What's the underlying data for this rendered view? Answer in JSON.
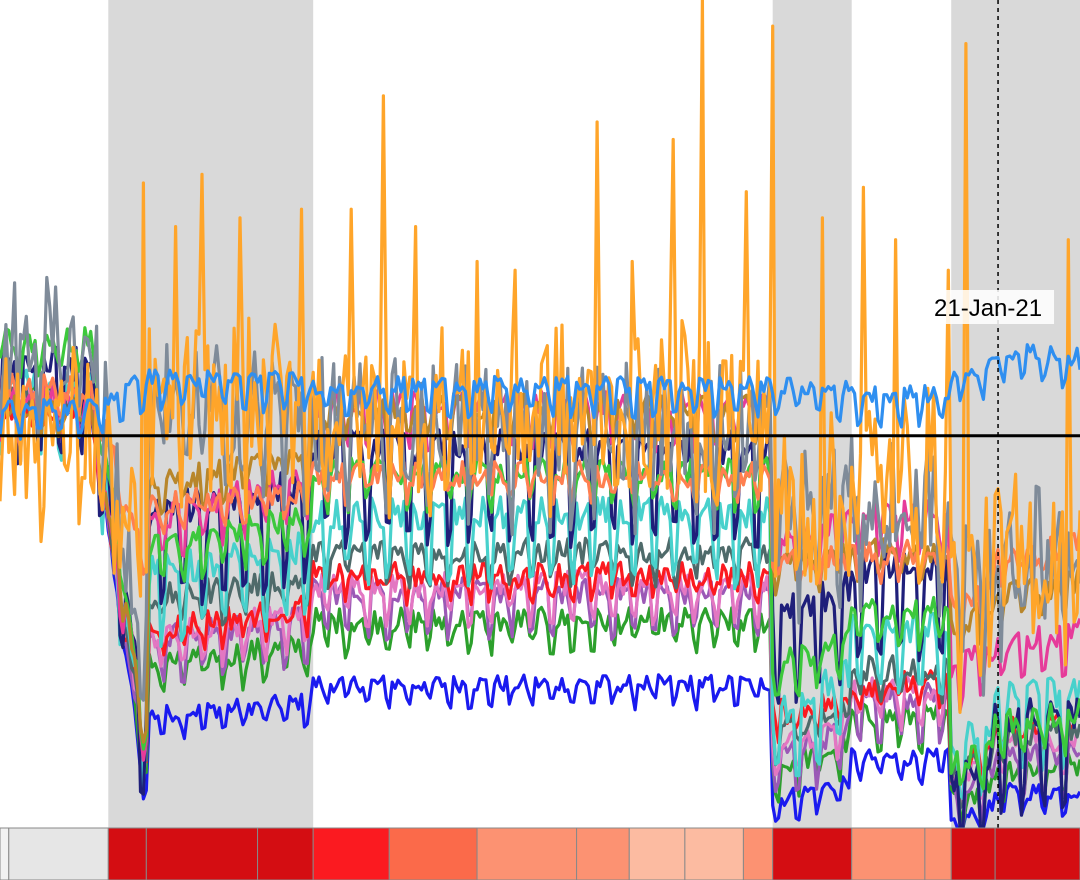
{
  "chart_data": {
    "type": "line",
    "title": "",
    "xlabel": "",
    "ylabel": "",
    "x_range": [
      "2020-02-15",
      "2021-02-18"
    ],
    "ylim": [
      -90,
      100
    ],
    "baseline": 0,
    "grid": false,
    "legend": "none",
    "lockdown_periods": [
      {
        "start": "2020-03-23",
        "end": "2020-06-01"
      },
      {
        "start": "2020-11-05",
        "end": "2020-12-02"
      },
      {
        "start": "2021-01-05",
        "end": "2021-02-18"
      }
    ],
    "annotation": {
      "date": "2021-01-21",
      "label": "21-Jan-21"
    },
    "stringency_strip": [
      {
        "start": "2020-02-15",
        "end": "2020-02-18",
        "color": "#f2f2f2"
      },
      {
        "start": "2020-02-18",
        "end": "2020-03-23",
        "color": "#e6e6e6"
      },
      {
        "start": "2020-03-23",
        "end": "2020-04-05",
        "color": "#d40d12"
      },
      {
        "start": "2020-04-05",
        "end": "2020-05-13",
        "color": "#d40d12"
      },
      {
        "start": "2020-05-13",
        "end": "2020-06-01",
        "color": "#d40d12"
      },
      {
        "start": "2020-06-01",
        "end": "2020-06-27",
        "color": "#fb1a20"
      },
      {
        "start": "2020-06-27",
        "end": "2020-07-27",
        "color": "#fb6a4a"
      },
      {
        "start": "2020-07-27",
        "end": "2020-08-30",
        "color": "#fc9272"
      },
      {
        "start": "2020-08-30",
        "end": "2020-09-17",
        "color": "#fc9272"
      },
      {
        "start": "2020-09-17",
        "end": "2020-10-06",
        "color": "#fcbba1"
      },
      {
        "start": "2020-10-06",
        "end": "2020-10-26",
        "color": "#fcbba1"
      },
      {
        "start": "2020-10-26",
        "end": "2020-11-05",
        "color": "#fc9272"
      },
      {
        "start": "2020-11-05",
        "end": "2020-12-02",
        "color": "#d40d12"
      },
      {
        "start": "2020-12-02",
        "end": "2020-12-27",
        "color": "#fc9272"
      },
      {
        "start": "2020-12-27",
        "end": "2021-01-05",
        "color": "#fc9272"
      },
      {
        "start": "2021-01-05",
        "end": "2021-01-20",
        "color": "#d40d12"
      },
      {
        "start": "2021-01-20",
        "end": "2021-02-18",
        "color": "#d40d12"
      }
    ],
    "series": [
      {
        "color": "#1a1aef",
        "start": 5,
        "trough": -88,
        "steady": [
          -80,
          -66,
          -58,
          -58,
          -85,
          -75,
          -90,
          -83,
          -82
        ],
        "weekly_amp": 3,
        "noise": 2,
        "spikes": 0
      },
      {
        "color": "#2ca02c",
        "start": 8,
        "trough": -85,
        "steady": [
          -76,
          -55,
          -44,
          -44,
          -78,
          -66,
          -85,
          -78,
          -76
        ],
        "weekly_amp": 4,
        "noise": 3,
        "spikes": 0
      },
      {
        "color": "#9b59b6",
        "start": 6,
        "trough": -82,
        "steady": [
          -73,
          -50,
          -38,
          -38,
          -76,
          -62,
          -84,
          -76,
          -74
        ],
        "weekly_amp": 6,
        "noise": 3,
        "spikes": 0
      },
      {
        "color": "#e377c2",
        "start": 6,
        "trough": -79,
        "steady": [
          -72,
          -49,
          -36,
          -36,
          -74,
          -60,
          -80,
          -72,
          -70
        ],
        "weekly_amp": 5,
        "noise": 3,
        "spikes": 0
      },
      {
        "color": "#fb1a20",
        "start": 4,
        "trough": -78,
        "steady": [
          -70,
          -47,
          -33,
          -33,
          -65,
          -58,
          -78,
          -68,
          -66
        ],
        "weekly_amp": 3,
        "noise": 3,
        "spikes": 0
      },
      {
        "color": "#4f6a6a",
        "start": 7,
        "trough": -80,
        "steady": [
          -68,
          -40,
          -28,
          -28,
          -70,
          -55,
          -80,
          -70,
          -68
        ],
        "weekly_amp": 4,
        "noise": 3,
        "spikes": 0
      },
      {
        "color": "#48d1cc",
        "start": 8,
        "trough": -76,
        "steady": [
          -66,
          -37,
          -22,
          -22,
          -68,
          -48,
          -76,
          -64,
          -62
        ],
        "weekly_amp": 10,
        "noise": 4,
        "spikes": 0
      },
      {
        "color": "#1f1f7a",
        "start": 11,
        "trough": -77,
        "steady": [
          -67,
          -25,
          -8,
          -8,
          -45,
          -36,
          -85,
          -70,
          -67
        ],
        "weekly_amp": 14,
        "noise": 4,
        "spikes": 0
      },
      {
        "color": "#e63b9a",
        "start": 6,
        "trough": -74,
        "steady": [
          -62,
          -25,
          5,
          5,
          -25,
          -20,
          -55,
          -50,
          -45
        ],
        "weekly_amp": 6,
        "noise": 3,
        "spikes": 0
      },
      {
        "color": "#3cc83c",
        "start": 20,
        "trough": -75,
        "steady": [
          -68,
          -30,
          -10,
          -10,
          -55,
          -42,
          -78,
          -68,
          -62
        ],
        "weekly_amp": 5,
        "noise": 3,
        "spikes": 0
      },
      {
        "color": "#b8862b",
        "start": 5,
        "trough": -72,
        "steady": [
          -66,
          -15,
          5,
          5,
          -30,
          -28,
          -45,
          -38,
          -32
        ],
        "weekly_amp": 4,
        "noise": 3,
        "spikes": 0
      },
      {
        "color": "#ff7f50",
        "start": 10,
        "trough": -32,
        "steady": [
          -40,
          -18,
          -10,
          -10,
          -30,
          -28,
          -40,
          -30,
          -22
        ],
        "weekly_amp": 3,
        "noise": 3,
        "spikes": 0
      },
      {
        "color": "#7f8b99",
        "start": 20,
        "trough": -60,
        "steady": [
          -50,
          5,
          0,
          0,
          -20,
          -18,
          -40,
          -30,
          -25
        ],
        "weekly_amp": 10,
        "noise": 14,
        "spikes": 0
      },
      {
        "color": "#ffa52a",
        "start": 0,
        "trough": -40,
        "steady": [
          -40,
          5,
          5,
          5,
          -20,
          -10,
          -40,
          -30,
          -25
        ],
        "weekly_amp": 5,
        "noise": 20,
        "spikes": 1
      },
      {
        "color": "#2f8ff0",
        "start": 5,
        "trough": 12,
        "steady": [
          20,
          12,
          10,
          10,
          10,
          8,
          12,
          18,
          15
        ],
        "weekly_amp": 4,
        "noise": 2,
        "spikes": 0
      }
    ],
    "spike_values": [
      [
        "2020-04-04",
        58
      ],
      [
        "2020-04-15",
        48
      ],
      [
        "2020-04-24",
        60
      ],
      [
        "2020-05-07",
        50
      ],
      [
        "2020-05-28",
        52
      ],
      [
        "2020-06-14",
        52
      ],
      [
        "2020-06-25",
        78
      ],
      [
        "2020-07-06",
        48
      ],
      [
        "2020-07-27",
        40
      ],
      [
        "2020-08-09",
        38
      ],
      [
        "2020-09-06",
        72
      ],
      [
        "2020-09-18",
        40
      ],
      [
        "2020-10-02",
        68
      ],
      [
        "2020-10-12",
        100
      ],
      [
        "2020-10-27",
        56
      ],
      [
        "2020-11-05",
        94
      ],
      [
        "2020-11-22",
        50
      ],
      [
        "2020-12-06",
        57
      ],
      [
        "2020-12-17",
        45
      ],
      [
        "2021-01-04",
        38
      ],
      [
        "2021-01-10",
        90
      ],
      [
        "2021-02-14",
        45
      ]
    ]
  }
}
